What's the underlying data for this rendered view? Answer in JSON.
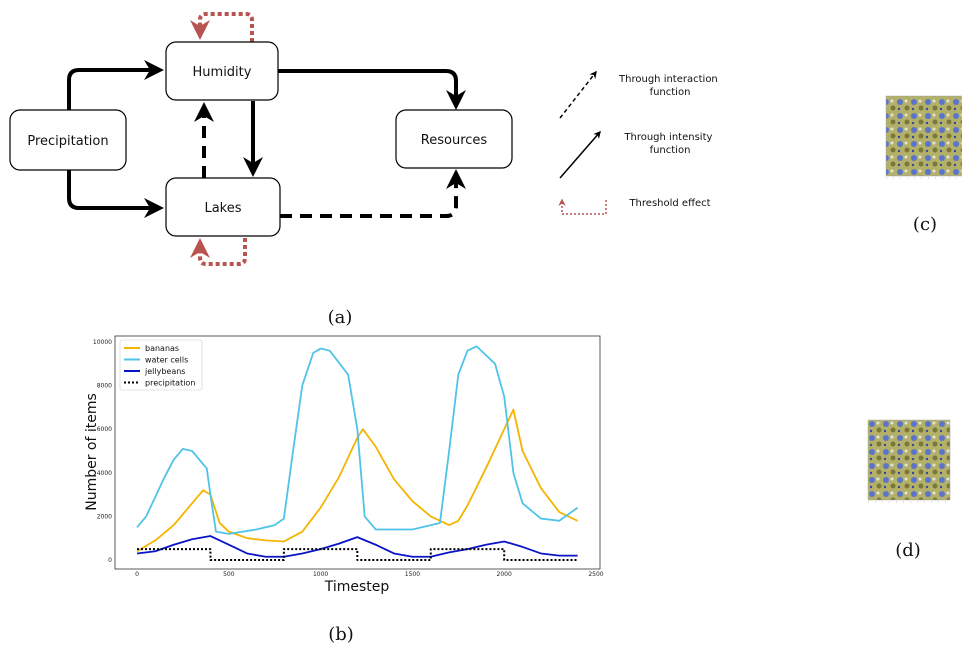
{
  "diagram_a": {
    "caption": "(a)",
    "nodes": {
      "precipitation": "Precipitation",
      "humidity": "Humidity",
      "lakes": "Lakes",
      "resources": "Resources"
    },
    "legend": {
      "interaction": "Through interaction function",
      "intensity": "Through intensity function",
      "threshold": "Threshold effect"
    },
    "colors": {
      "threshold": "#b85450",
      "edge": "#000000"
    }
  },
  "chart_b": {
    "caption": "(b)",
    "chart_data": {
      "type": "line",
      "xlabel": "Timestep",
      "ylabel": "Number of items",
      "xlim": [
        0,
        2500
      ],
      "ylim": [
        0,
        10000
      ],
      "xticks": [
        "0",
        "500",
        "1000",
        "1500",
        "2000",
        "2500"
      ],
      "yticks": [
        "0",
        "2000",
        "4000",
        "6000",
        "8000",
        "10000"
      ],
      "legend_position": "top-left",
      "series": [
        {
          "name": "bananas",
          "color": "#f5b400",
          "style": "solid",
          "points": [
            [
              0,
              400
            ],
            [
              100,
              900
            ],
            [
              200,
              1600
            ],
            [
              300,
              2600
            ],
            [
              360,
              3200
            ],
            [
              400,
              3000
            ],
            [
              450,
              1700
            ],
            [
              500,
              1300
            ],
            [
              600,
              1000
            ],
            [
              700,
              900
            ],
            [
              800,
              850
            ],
            [
              900,
              1300
            ],
            [
              1000,
              2400
            ],
            [
              1100,
              3800
            ],
            [
              1200,
              5600
            ],
            [
              1230,
              6000
            ],
            [
              1300,
              5200
            ],
            [
              1400,
              3700
            ],
            [
              1500,
              2700
            ],
            [
              1600,
              2000
            ],
            [
              1700,
              1600
            ],
            [
              1750,
              1800
            ],
            [
              1800,
              2500
            ],
            [
              1900,
              4200
            ],
            [
              2000,
              6000
            ],
            [
              2050,
              6900
            ],
            [
              2100,
              5000
            ],
            [
              2200,
              3300
            ],
            [
              2300,
              2200
            ],
            [
              2400,
              1800
            ]
          ]
        },
        {
          "name": "water cells",
          "color": "#4fc3e8",
          "style": "solid",
          "points": [
            [
              0,
              1500
            ],
            [
              50,
              2000
            ],
            [
              100,
              2900
            ],
            [
              150,
              3800
            ],
            [
              200,
              4600
            ],
            [
              250,
              5100
            ],
            [
              300,
              5000
            ],
            [
              380,
              4200
            ],
            [
              400,
              3000
            ],
            [
              430,
              1300
            ],
            [
              500,
              1200
            ],
            [
              650,
              1400
            ],
            [
              750,
              1600
            ],
            [
              800,
              1900
            ],
            [
              850,
              5000
            ],
            [
              900,
              8000
            ],
            [
              960,
              9500
            ],
            [
              1000,
              9700
            ],
            [
              1050,
              9600
            ],
            [
              1150,
              8500
            ],
            [
              1200,
              6000
            ],
            [
              1240,
              2000
            ],
            [
              1300,
              1400
            ],
            [
              1500,
              1400
            ],
            [
              1600,
              1600
            ],
            [
              1650,
              1700
            ],
            [
              1700,
              5000
            ],
            [
              1750,
              8500
            ],
            [
              1800,
              9600
            ],
            [
              1850,
              9800
            ],
            [
              1950,
              9000
            ],
            [
              2000,
              7500
            ],
            [
              2050,
              4000
            ],
            [
              2100,
              2600
            ],
            [
              2200,
              1900
            ],
            [
              2300,
              1800
            ],
            [
              2400,
              2400
            ]
          ]
        },
        {
          "name": "jellybeans",
          "color": "#0a14c8",
          "style": "solid",
          "points": [
            [
              0,
              300
            ],
            [
              100,
              400
            ],
            [
              200,
              700
            ],
            [
              300,
              950
            ],
            [
              400,
              1100
            ],
            [
              500,
              700
            ],
            [
              600,
              300
            ],
            [
              700,
              150
            ],
            [
              800,
              150
            ],
            [
              900,
              300
            ],
            [
              1000,
              500
            ],
            [
              1100,
              750
            ],
            [
              1200,
              1050
            ],
            [
              1300,
              700
            ],
            [
              1400,
              300
            ],
            [
              1500,
              150
            ],
            [
              1600,
              150
            ],
            [
              1700,
              350
            ],
            [
              1800,
              500
            ],
            [
              1900,
              700
            ],
            [
              2000,
              850
            ],
            [
              2100,
              600
            ],
            [
              2200,
              300
            ],
            [
              2300,
              200
            ],
            [
              2400,
              200
            ]
          ]
        },
        {
          "name": "precipitation",
          "color": "#000000",
          "style": "dotted",
          "points": [
            [
              0,
              500
            ],
            [
              400,
              500
            ],
            [
              400,
              0
            ],
            [
              800,
              0
            ],
            [
              800,
              500
            ],
            [
              1200,
              500
            ],
            [
              1200,
              0
            ],
            [
              1600,
              0
            ],
            [
              1600,
              500
            ],
            [
              2000,
              500
            ],
            [
              2000,
              0
            ],
            [
              2400,
              0
            ]
          ]
        }
      ]
    }
  },
  "panel_c": {
    "caption": "(c)"
  },
  "panel_d": {
    "caption": "(d)"
  }
}
